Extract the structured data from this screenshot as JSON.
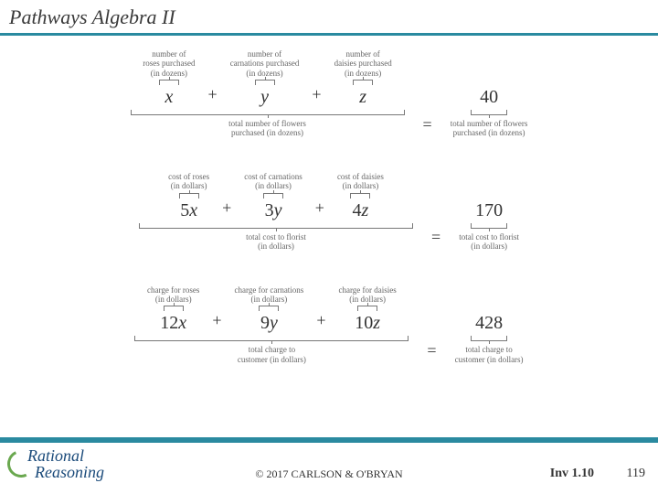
{
  "header": {
    "title": "Pathways Algebra II"
  },
  "colors": {
    "accent": "#2a8aa0",
    "text": "#333333",
    "label": "#666666"
  },
  "equations": [
    {
      "terms": [
        {
          "top_label": "number of\nroses purchased\n(in dozens)",
          "coef": "",
          "var": "x"
        },
        {
          "top_label": "number of\ncarnations purchased\n(in dozens)",
          "coef": "",
          "var": "y"
        },
        {
          "top_label": "number of\ndaisies purchased\n(in dozens)",
          "coef": "",
          "var": "z"
        }
      ],
      "lhs_bottom_label": "total number of flowers\npurchased (in dozens)",
      "rhs_value": "40",
      "rhs_bottom_label": "total number of flowers\npurchased (in dozens)"
    },
    {
      "terms": [
        {
          "top_label": "cost of roses\n(in dollars)",
          "coef": "5",
          "var": "x"
        },
        {
          "top_label": "cost of carnations\n(in dollars)",
          "coef": "3",
          "var": "y"
        },
        {
          "top_label": "cost of daisies\n(in dollars)",
          "coef": "4",
          "var": "z"
        }
      ],
      "lhs_bottom_label": "total cost to florist\n(in dollars)",
      "rhs_value": "170",
      "rhs_bottom_label": "total cost to florist\n(in dollars)"
    },
    {
      "terms": [
        {
          "top_label": "charge for roses\n(in dollars)",
          "coef": "12",
          "var": "x"
        },
        {
          "top_label": "charge for carnations\n(in dollars)",
          "coef": "9",
          "var": "y"
        },
        {
          "top_label": "charge for daisies\n(in dollars)",
          "coef": "10",
          "var": "z"
        }
      ],
      "lhs_bottom_label": "total charge to\ncustomer (in dollars)",
      "rhs_value": "428",
      "rhs_bottom_label": "total charge to\ncustomer (in dollars)"
    }
  ],
  "footer": {
    "logo_line1": "Rational",
    "logo_line2": "Reasoning",
    "copyright": "© 2017 CARLSON & O'BRYAN",
    "inv": "Inv 1.10",
    "page": "119"
  }
}
